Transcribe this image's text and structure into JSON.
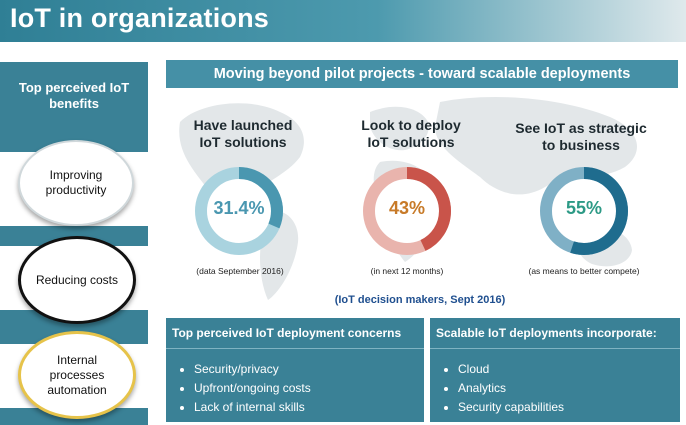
{
  "header": {
    "title": "IoT in organizations"
  },
  "sidebar": {
    "title": "Top perceived IoT benefits",
    "benefits": [
      "Improving productivity",
      "Reducing costs",
      "Internal processes automation"
    ]
  },
  "headline": "Moving beyond pilot projects - toward scalable deployments",
  "stats": [
    {
      "label": "Have launched IoT solutions",
      "value": "31.4%",
      "percent": 31.4,
      "note": "(data September 2016)",
      "color": "#4a97b0",
      "track": "#a9d3df"
    },
    {
      "label": "Look to deploy IoT solutions",
      "value": "43%",
      "percent": 43,
      "note": "(in next 12 months)",
      "color": "#c9544a",
      "track": "#e9b4ad"
    },
    {
      "label": "See IoT as strategic to business",
      "value": "55%",
      "percent": 55,
      "note": "(as means to better compete)",
      "color": "#1f6c8e",
      "track": "#7fb0c6"
    }
  ],
  "stat_value_colors": [
    "#4a97b0",
    "#c77a28",
    "#2d9a86"
  ],
  "source": "(IoT decision makers, Sept 2016)",
  "concerns": {
    "title": "Top perceived IoT deployment concerns",
    "items": [
      "Security/privacy",
      "Upfront/ongoing costs",
      "Lack of internal skills"
    ]
  },
  "scalable": {
    "title": "Scalable IoT deployments incorporate:",
    "items": [
      "Cloud",
      "Analytics",
      "Security capabilities"
    ]
  }
}
